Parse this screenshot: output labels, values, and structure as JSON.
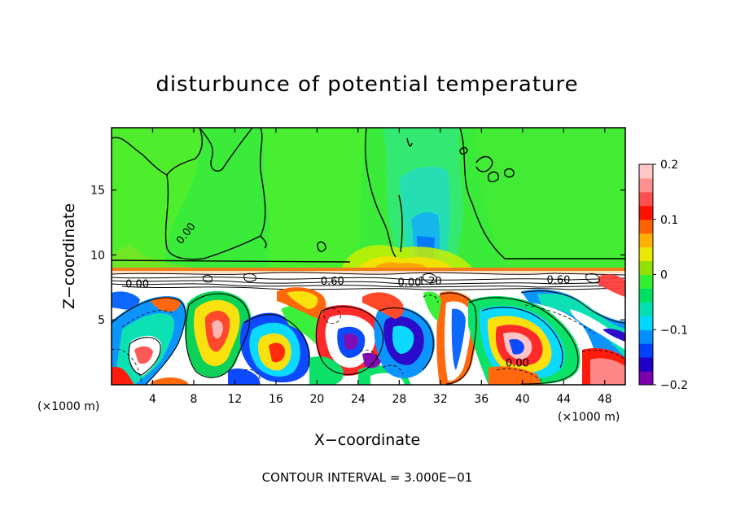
{
  "chart_data": {
    "type": "heatmap",
    "title": "disturbunce of potential temperature",
    "xlabel": "X−coordinate",
    "ylabel": "Z−coordinate",
    "x_unit_label": "(×1000 m)",
    "y_unit_label": "(×1000 m)",
    "footer": "CONTOUR INTERVAL = 3.000E−01",
    "xlim": [
      0,
      50
    ],
    "ylim": [
      0,
      19.8
    ],
    "x_ticks": [
      4,
      8,
      12,
      16,
      20,
      24,
      28,
      32,
      36,
      40,
      44,
      48
    ],
    "y_ticks": [
      5,
      10,
      15
    ],
    "colorbar": {
      "range": [
        -0.2,
        0.2
      ],
      "ticks": [
        0.2,
        0.1,
        0,
        -0.1,
        -0.2
      ],
      "tick_labels": [
        "0.2",
        "0.1",
        "0",
        "−0.1",
        "−0.2"
      ],
      "colors": [
        "#7a00b0",
        "#2000c8",
        "#0040ff",
        "#0090ff",
        "#00d8ff",
        "#00e0b0",
        "#00e060",
        "#30f030",
        "#90e000",
        "#e8e800",
        "#ffb000",
        "#ff6000",
        "#ff1000",
        "#ff5050",
        "#ff9090",
        "#ffc8c8"
      ]
    },
    "interface_height": 9.0,
    "contour_labels": [
      {
        "text": "0.00",
        "x": 7.5,
        "z": 11.5,
        "rotate": -52
      },
      {
        "text": "0.00",
        "x": 2.5,
        "z": 7.5,
        "rotate": 0
      },
      {
        "text": "0.60",
        "x": 21.5,
        "z": 7.7,
        "rotate": 0
      },
      {
        "text": "0.00",
        "x": 29.0,
        "z": 7.6,
        "rotate": 0
      },
      {
        "text": "1.20",
        "x": 31.0,
        "z": 7.7,
        "rotate": 0
      },
      {
        "text": "0.60",
        "x": 43.5,
        "z": 7.8,
        "rotate": 0
      },
      {
        "text": "0.00",
        "x": 39.5,
        "z": 1.4,
        "rotate": 0
      }
    ]
  }
}
